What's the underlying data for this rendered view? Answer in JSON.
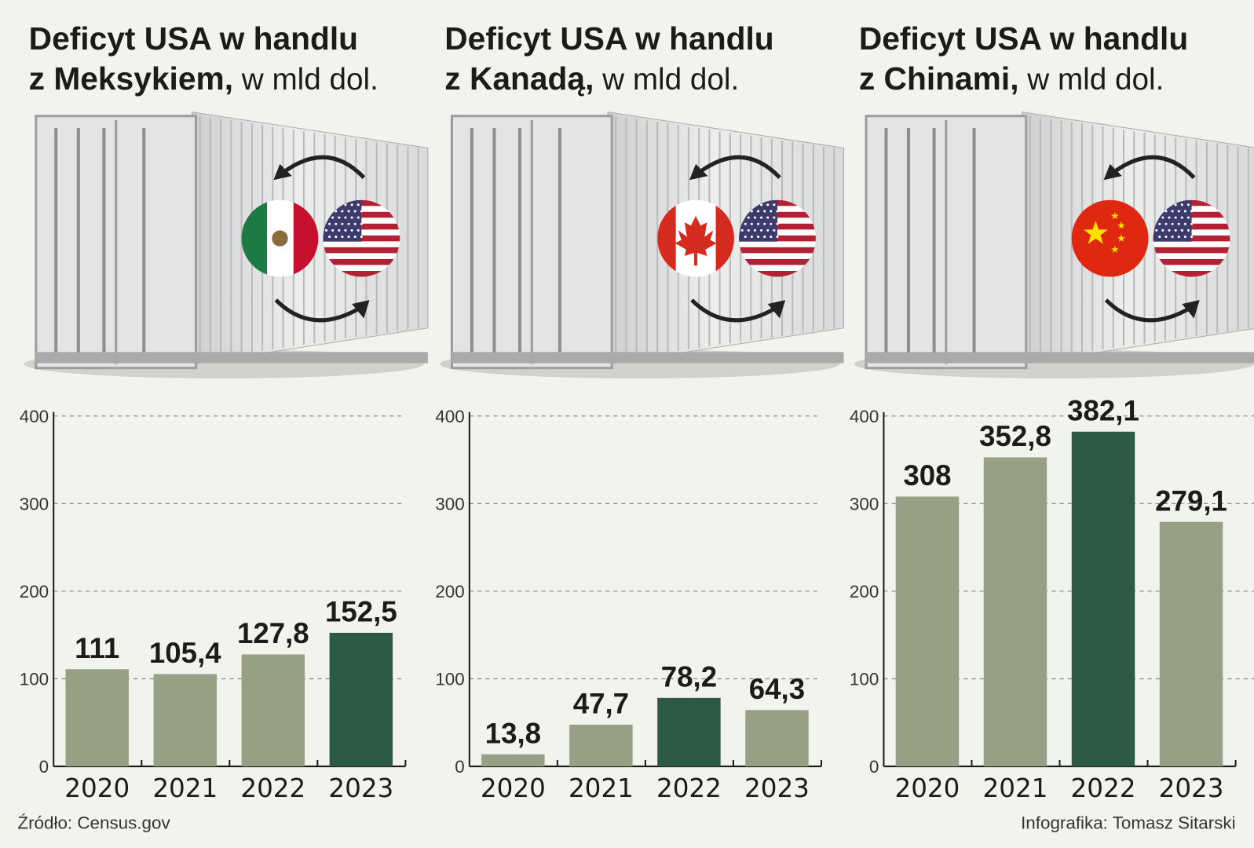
{
  "colors": {
    "background": "#f3f3ee",
    "bar": "#95a085",
    "bar_highlight": "#2d5a42",
    "axis": "#1b1b1b",
    "grid": "#888888"
  },
  "chart_data": [
    {
      "type": "bar",
      "title_bold_1": "Deficyt USA w handlu",
      "title_bold_2": "z Meksykiem,",
      "title_normal": " w mld dol.",
      "partner_flag": "mexico-flag-icon",
      "categories": [
        "2020",
        "2021",
        "2022",
        "2023"
      ],
      "values": [
        111,
        105.4,
        127.8,
        152.5
      ],
      "labels": [
        "111",
        "105,4",
        "127,8",
        "152,5"
      ],
      "highlight_index": 3,
      "yticks": [
        "0",
        "100",
        "200",
        "300",
        "400"
      ],
      "ylim": [
        0,
        400
      ],
      "grid": true
    },
    {
      "type": "bar",
      "title_bold_1": "Deficyt USA w handlu",
      "title_bold_2": "z Kanadą,",
      "title_normal": " w mld dol.",
      "partner_flag": "canada-flag-icon",
      "categories": [
        "2020",
        "2021",
        "2022",
        "2023"
      ],
      "values": [
        13.8,
        47.7,
        78.2,
        64.3
      ],
      "labels": [
        "13,8",
        "47,7",
        "78,2",
        "64,3"
      ],
      "highlight_index": 2,
      "yticks": [
        "0",
        "100",
        "200",
        "300",
        "400"
      ],
      "ylim": [
        0,
        400
      ],
      "grid": true
    },
    {
      "type": "bar",
      "title_bold_1": "Deficyt USA w handlu",
      "title_bold_2": "z Chinami,",
      "title_normal": " w mld dol.",
      "partner_flag": "china-flag-icon",
      "categories": [
        "2020",
        "2021",
        "2022",
        "2023"
      ],
      "values": [
        308,
        352.8,
        382.1,
        279.1
      ],
      "labels": [
        "308",
        "352,8",
        "382,1",
        "279,1"
      ],
      "highlight_index": 2,
      "yticks": [
        "0",
        "100",
        "200",
        "300",
        "400"
      ],
      "ylim": [
        0,
        400
      ],
      "grid": true
    }
  ],
  "footer": {
    "source": "Źródło: Census.gov",
    "credit": "Infografika: Tomasz Sitarski"
  }
}
